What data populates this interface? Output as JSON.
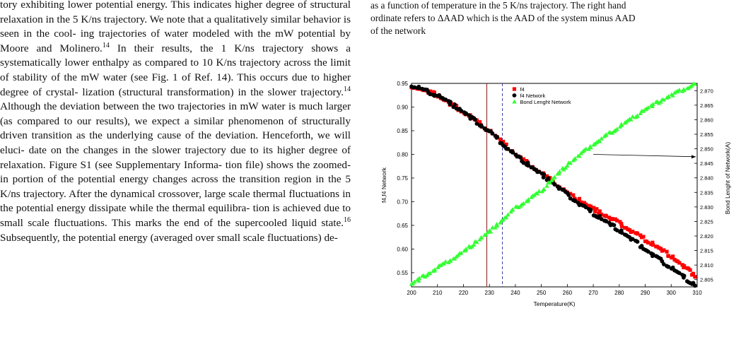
{
  "left_column": {
    "lines": [
      "tory exhibiting lower potential energy. This indicates higher",
      "degree of structural relaxation in the 5 K/ns trajectory. We",
      "note that a qualitatively similar behavior is seen in the cool-",
      "ing trajectories of water modeled with the mW potential by",
      "Moore and Molinero.",
      "In their results, the 1 K/ns trajectory",
      "shows a systematically lower enthalpy as compared to 10 K/ns",
      "trajectory across the limit of stability of the mW water (see",
      "Fig. 1 of Ref. 14). This occurs due to higher degree of crystal-",
      "lization (structural transformation) in the slower trajectory.",
      "Although the deviation between the two trajectories in mW",
      "water is much larger (as compared to our results), we expect",
      "a similar phenomenon of structurally driven transition as the",
      "underlying cause of the deviation. Henceforth, we will eluci-",
      "date on the changes in the slower trajectory due to its higher",
      "degree of relaxation. Figure S1 (see Supplementary Informa-",
      "tion file) shows the zoomed-in portion of the potential energy",
      "changes across the transition region in the 5 K/ns trajectory.",
      "After the dynamical crossover, large scale thermal fluctuations",
      "in the potential energy dissipate while the thermal equilibra-",
      "tion is achieved due to small scale fluctuations. This marks",
      "the end of the supercooled liquid state.",
      "Subsequently, the",
      "potential energy (averaged over small scale fluctuations) de-"
    ],
    "ref_14a": "14",
    "ref_14b": "14",
    "ref_16": "16"
  },
  "caption": {
    "line1": "as a function of temperature in the 5 K/ns trajectory. The right hand",
    "line2_prefix": "ordinate refers to ",
    "line2_delta": "ΔAAD",
    "line2_suffix": " which is the AAD of the system minus AAD",
    "line3": "of the network"
  },
  "chart_data": {
    "type": "scatter",
    "xlabel": "Temperature(K)",
    "ylabel": "f4,f4 Network",
    "y2label": "Bond Lenght of Network(A)",
    "xlim": [
      200,
      310
    ],
    "ylim": [
      0.52,
      0.95
    ],
    "y2lim": [
      2.8025,
      2.8725
    ],
    "xticks": [
      "200",
      "210",
      "220",
      "230",
      "240",
      "250",
      "260",
      "270",
      "280",
      "290",
      "300",
      "310"
    ],
    "yticks": [
      "0.55",
      "0.60",
      "0.65",
      "0.70",
      "0.75",
      "0.80",
      "0.85",
      "0.90",
      "0.95"
    ],
    "y2ticks": [
      "2.805",
      "2.810",
      "2.815",
      "2.820",
      "2.825",
      "2.830",
      "2.835",
      "2.840",
      "2.845",
      "2.850",
      "2.855",
      "2.860",
      "2.865",
      "2.870"
    ],
    "legend_position": "top-center",
    "vlines": [
      {
        "x": 229,
        "style": "solid",
        "color": "#8b1a1a"
      },
      {
        "x": 235,
        "style": "dashed",
        "color": "#3a3aa0"
      }
    ],
    "arrow": {
      "from": [
        270,
        0.8
      ],
      "to": [
        310,
        0.795
      ]
    },
    "series": [
      {
        "name": "f4",
        "marker": "square",
        "color": "#ff0000",
        "axis": "left",
        "x": [
          200,
          210,
          220,
          230,
          240,
          250,
          255,
          260,
          270,
          280,
          290,
          300,
          310
        ],
        "y": [
          0.945,
          0.925,
          0.89,
          0.85,
          0.8,
          0.76,
          0.74,
          0.718,
          0.685,
          0.655,
          0.62,
          0.585,
          0.54
        ]
      },
      {
        "name": "f4 Network",
        "marker": "circle",
        "color": "#000000",
        "axis": "left",
        "x": [
          200,
          210,
          220,
          230,
          240,
          250,
          255,
          260,
          270,
          280,
          290,
          300,
          310
        ],
        "y": [
          0.945,
          0.925,
          0.89,
          0.848,
          0.798,
          0.758,
          0.738,
          0.715,
          0.675,
          0.64,
          0.6,
          0.56,
          0.52
        ]
      },
      {
        "name": "Bond Lenght Network",
        "marker": "triangle",
        "color": "#33ff33",
        "axis": "right",
        "x": [
          200,
          210,
          220,
          230,
          240,
          250,
          260,
          270,
          280,
          290,
          300,
          310
        ],
        "y": [
          2.8035,
          2.809,
          2.8145,
          2.8215,
          2.8295,
          2.8355,
          2.8445,
          2.8515,
          2.8575,
          2.8635,
          2.8685,
          2.8725
        ]
      }
    ]
  }
}
